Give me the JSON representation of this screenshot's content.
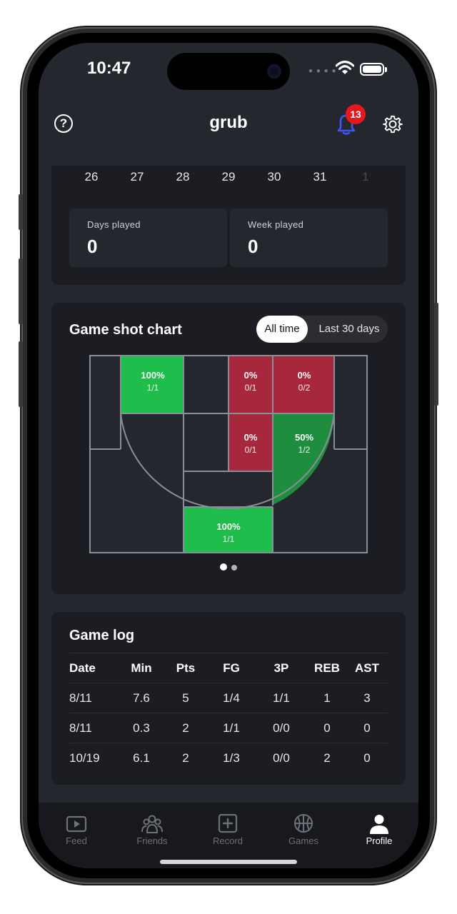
{
  "status": {
    "time": "10:47"
  },
  "header": {
    "title": "grub",
    "notification_count": "13"
  },
  "calendar": {
    "days": [
      "26",
      "27",
      "28",
      "29",
      "30",
      "31",
      "1"
    ]
  },
  "stats": [
    {
      "label": "Days played",
      "value": "0"
    },
    {
      "label": "Week played",
      "value": "0"
    }
  ],
  "shot_chart": {
    "title": "Game shot chart",
    "filters": [
      "All time",
      "Last 30 days"
    ],
    "selected_filter": "All time",
    "zones": [
      {
        "pct": "100%",
        "made_att": "1/1"
      },
      {
        "pct": "0%",
        "made_att": "0/1"
      },
      {
        "pct": "0%",
        "made_att": "0/2"
      },
      {
        "pct": "0%",
        "made_att": "0/1"
      },
      {
        "pct": "50%",
        "made_att": "1/2"
      },
      {
        "pct": "100%",
        "made_att": "1/1"
      }
    ],
    "colors": {
      "hot": "#1fbe4c",
      "warm": "#1e8e3e",
      "cold": "#a7283d",
      "empty": "#25272e",
      "lines": "#8a8e98"
    },
    "pages": 2,
    "current_page": 1
  },
  "game_log": {
    "title": "Game log",
    "columns": [
      "Date",
      "Min",
      "Pts",
      "FG",
      "3P",
      "REB",
      "AST"
    ],
    "rows": [
      [
        "8/11",
        "7.6",
        "5",
        "1/4",
        "1/1",
        "1",
        "3"
      ],
      [
        "8/11",
        "0.3",
        "2",
        "1/1",
        "0/0",
        "0",
        "0"
      ],
      [
        "10/19",
        "6.1",
        "2",
        "1/3",
        "0/0",
        "2",
        "0"
      ]
    ]
  },
  "tabs": [
    {
      "label": "Feed",
      "icon": "play-icon"
    },
    {
      "label": "Friends",
      "icon": "people-icon"
    },
    {
      "label": "Record",
      "icon": "plus-square-icon"
    },
    {
      "label": "Games",
      "icon": "basketball-icon"
    },
    {
      "label": "Profile",
      "icon": "person-icon"
    }
  ],
  "active_tab": "Profile"
}
